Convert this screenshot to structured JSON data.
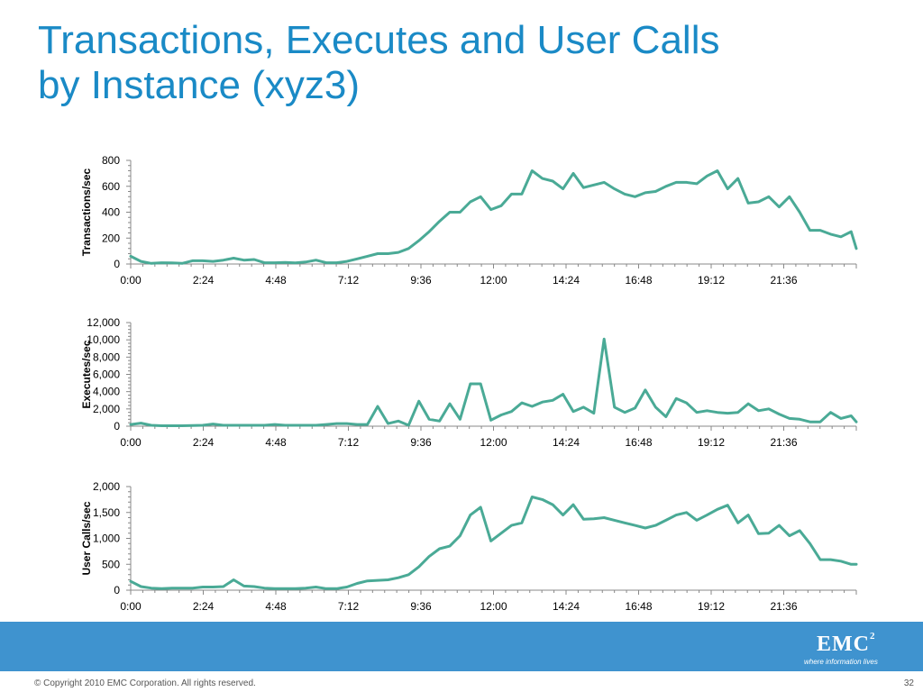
{
  "slide": {
    "title_line1": "Transactions, Executes and User Calls",
    "title_line2": "by Instance (xyz3)",
    "copyright": "© Copyright 2010  EMC Corporation.  All rights reserved.",
    "page_number": "32",
    "logo_text": "EMC",
    "logo_superscript": "2",
    "logo_tagline": "where information lives",
    "band_color": "#3f93cf",
    "title_color": "#1a8ac6"
  },
  "chart_data": [
    {
      "type": "line",
      "ylabel": "Transactions/sec",
      "ylim": [
        0,
        800
      ],
      "yticks": [
        "0",
        "200",
        "400",
        "600",
        "800"
      ],
      "xlim": [
        0,
        1410
      ],
      "xtick_labels": [
        "0:00",
        "2:24",
        "4:48",
        "7:12",
        "9:36",
        "12:00",
        "14:24",
        "16:48",
        "19:12",
        "21:36"
      ],
      "line_color": "#4aaa96",
      "grid": false,
      "series": [
        {
          "x": [
            0,
            20,
            40,
            60,
            80,
            100,
            120,
            140,
            160,
            180,
            200,
            220,
            240,
            260,
            280,
            300,
            320,
            340,
            360,
            380,
            400,
            420,
            440,
            460,
            480,
            500,
            520,
            540,
            560,
            580,
            600,
            620,
            640,
            660,
            680,
            700,
            720,
            740,
            760,
            780,
            800,
            820,
            840,
            860,
            880,
            900,
            920,
            940,
            960,
            980,
            1000,
            1020,
            1040,
            1060,
            1080,
            1100,
            1120,
            1140,
            1160,
            1180,
            1200,
            1220,
            1240,
            1260,
            1280,
            1300,
            1320,
            1340,
            1360,
            1380,
            1400,
            1410
          ],
          "values": [
            60,
            20,
            5,
            10,
            8,
            5,
            25,
            25,
            20,
            30,
            45,
            30,
            35,
            10,
            10,
            12,
            8,
            15,
            30,
            10,
            10,
            20,
            40,
            60,
            80,
            80,
            90,
            120,
            180,
            250,
            330,
            400,
            400,
            480,
            520,
            420,
            450,
            540,
            540,
            720,
            660,
            640,
            580,
            700,
            590,
            610,
            630,
            580,
            540,
            520,
            550,
            560,
            600,
            630,
            630,
            620,
            680,
            720,
            580,
            660,
            470,
            480,
            520,
            440,
            520,
            400,
            260,
            260,
            230,
            210,
            250,
            120
          ]
        }
      ]
    },
    {
      "type": "line",
      "ylabel": "Executes/sec",
      "ylim": [
        0,
        12000
      ],
      "yticks": [
        "0",
        "2,000",
        "4,000",
        "6,000",
        "8,000",
        "10,000",
        "12,000"
      ],
      "xlim": [
        0,
        1410
      ],
      "xtick_labels": [
        "0:00",
        "2:24",
        "4:48",
        "7:12",
        "9:36",
        "12:00",
        "14:24",
        "16:48",
        "19:12",
        "21:36"
      ],
      "line_color": "#4aaa96",
      "grid": false,
      "series": [
        {
          "x": [
            0,
            20,
            40,
            60,
            80,
            100,
            120,
            140,
            160,
            180,
            200,
            220,
            240,
            260,
            280,
            300,
            320,
            340,
            360,
            380,
            400,
            420,
            440,
            460,
            480,
            500,
            520,
            540,
            560,
            580,
            600,
            620,
            640,
            660,
            680,
            700,
            720,
            740,
            760,
            780,
            800,
            820,
            840,
            860,
            880,
            900,
            920,
            940,
            960,
            980,
            1000,
            1020,
            1040,
            1060,
            1080,
            1100,
            1120,
            1140,
            1160,
            1180,
            1200,
            1220,
            1240,
            1260,
            1280,
            1300,
            1320,
            1340,
            1360,
            1380,
            1400,
            1410
          ],
          "values": [
            200,
            350,
            100,
            50,
            50,
            50,
            80,
            100,
            250,
            100,
            100,
            100,
            100,
            100,
            200,
            100,
            100,
            100,
            100,
            200,
            300,
            300,
            200,
            200,
            2300,
            300,
            600,
            100,
            2900,
            800,
            600,
            2600,
            800,
            4900,
            4900,
            700,
            1300,
            1700,
            2700,
            2300,
            2800,
            3000,
            3700,
            1700,
            2200,
            1500,
            10100,
            2200,
            1600,
            2100,
            4200,
            2200,
            1100,
            3200,
            2700,
            1600,
            1800,
            1600,
            1500,
            1600,
            2600,
            1800,
            2000,
            1400,
            900,
            800,
            500,
            500,
            1600,
            900,
            1200,
            500
          ]
        }
      ]
    },
    {
      "type": "line",
      "ylabel": "User Calls/sec",
      "ylim": [
        0,
        2000
      ],
      "yticks": [
        "0",
        "500",
        "1,000",
        "1,500",
        "2,000"
      ],
      "xlim": [
        0,
        1410
      ],
      "xtick_labels": [
        "0:00",
        "2:24",
        "4:48",
        "7:12",
        "9:36",
        "12:00",
        "14:24",
        "16:48",
        "19:12",
        "21:36"
      ],
      "line_color": "#4aaa96",
      "grid": false,
      "series": [
        {
          "x": [
            0,
            20,
            40,
            60,
            80,
            100,
            120,
            140,
            160,
            180,
            200,
            220,
            240,
            260,
            280,
            300,
            320,
            340,
            360,
            380,
            400,
            420,
            440,
            460,
            480,
            500,
            520,
            540,
            560,
            580,
            600,
            620,
            640,
            660,
            680,
            700,
            720,
            740,
            760,
            780,
            800,
            820,
            840,
            860,
            880,
            900,
            920,
            940,
            960,
            980,
            1000,
            1020,
            1040,
            1060,
            1080,
            1100,
            1120,
            1140,
            1160,
            1180,
            1200,
            1220,
            1240,
            1260,
            1280,
            1300,
            1320,
            1340,
            1360,
            1380,
            1400,
            1410
          ],
          "values": [
            170,
            70,
            40,
            30,
            40,
            40,
            40,
            60,
            60,
            70,
            200,
            80,
            70,
            40,
            30,
            30,
            30,
            40,
            60,
            30,
            30,
            60,
            130,
            180,
            190,
            200,
            240,
            300,
            450,
            650,
            800,
            850,
            1050,
            1450,
            1600,
            950,
            1100,
            1250,
            1300,
            1800,
            1750,
            1650,
            1450,
            1650,
            1370,
            1380,
            1400,
            1350,
            1300,
            1250,
            1200,
            1250,
            1350,
            1450,
            1500,
            1350,
            1450,
            1560,
            1640,
            1300,
            1450,
            1090,
            1100,
            1250,
            1050,
            1150,
            900,
            590,
            590,
            560,
            500,
            500
          ]
        }
      ]
    }
  ]
}
